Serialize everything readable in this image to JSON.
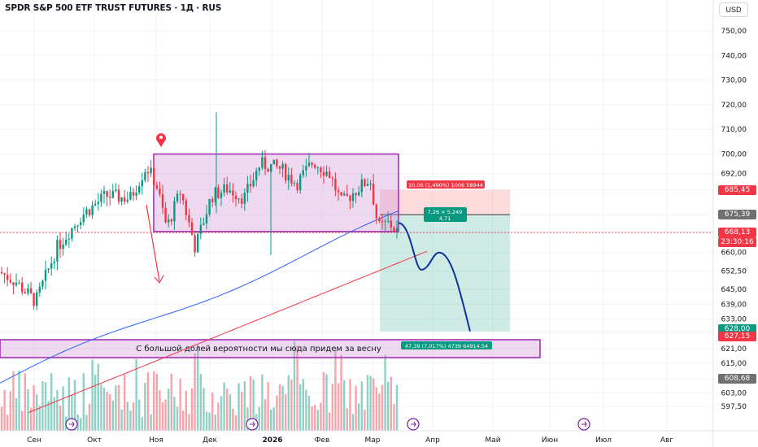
{
  "header": {
    "ticker_title": "SPDR S&P 500 ETF TRUST FUTURES · 1Д · RUS",
    "currency_button": "USD"
  },
  "price_axis": {
    "ticks": [
      "750,00",
      "740,00",
      "730,00",
      "720,00",
      "710,00",
      "700,00",
      "692,00",
      "685,45",
      "675,39",
      "668,13",
      "23:30:16",
      "660,00",
      "652,50",
      "645,00",
      "639,00",
      "633,00",
      "628,00",
      "627,15",
      "621,00",
      "615,00",
      "608,68",
      "603,00",
      "597,50"
    ],
    "price_tags": [
      {
        "label": "685,45",
        "kind": "red"
      },
      {
        "label": "675,39",
        "kind": "gray"
      },
      {
        "label": "668,13",
        "kind": "red"
      },
      {
        "label": "23:30:16",
        "kind": "red"
      },
      {
        "label": "628,00",
        "kind": "teal"
      },
      {
        "label": "627,15",
        "kind": "red"
      },
      {
        "label": "608,68",
        "kind": "gray"
      }
    ]
  },
  "time_axis": {
    "labels": [
      "Сен",
      "Окт",
      "Ноя",
      "Дек",
      "2026",
      "Фев",
      "Мар",
      "Апр",
      "Май",
      "Июн",
      "Июл",
      "Авг"
    ]
  },
  "drawings": {
    "annotation_text": "С большой долей вероятности мы сюда придем за весну",
    "risk_label": "10,06 (1,490%) 1006 58944",
    "entry_label_line1": "7,26 × 5.249",
    "entry_label_line2": "4,71",
    "target_label": "47,39 (7,017%) 4739 64914.54"
  },
  "chart_data": {
    "type": "candlestick",
    "title": "SPDR S&P 500 ETF TRUST FUTURES · 1Д · RUS",
    "ylim": [
      594,
      758
    ],
    "x_categories": [
      "Сен",
      "Окт",
      "Ноя",
      "Дек",
      "2026",
      "Фев",
      "Мар",
      "Апр",
      "Май",
      "Июн",
      "Июл",
      "Авг"
    ],
    "last_price": 668.13,
    "ma_levels": {
      "blue_ma_last": 675.39,
      "red_ma_last": 660.5
    },
    "range_box": {
      "top": 700,
      "bottom": 668.5
    },
    "position": {
      "entry": 675.39,
      "stop": 685.45,
      "target": 628.0
    },
    "projection_lows": [
      653,
      628
    ]
  },
  "colors": {
    "up": "#089981",
    "down": "#f23645",
    "ma_blue": "#2962ff",
    "ma_red": "#f23645",
    "box_fill": "#e1bee7",
    "box_border": "#9c27b0"
  }
}
